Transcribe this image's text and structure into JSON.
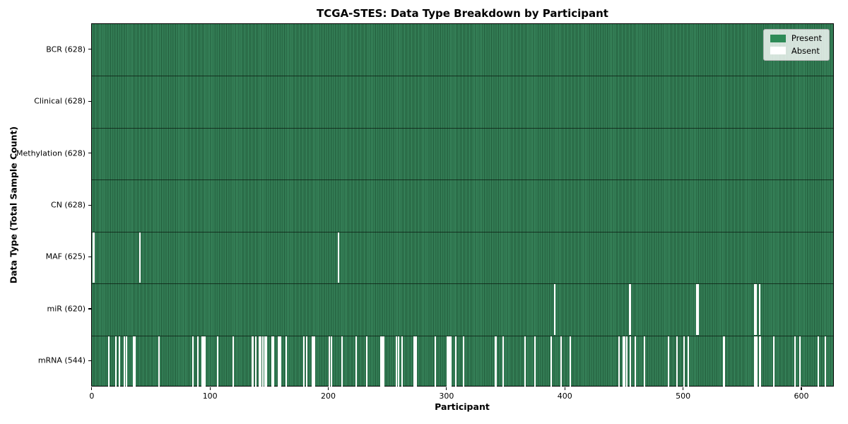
{
  "title": "TCGA-STES: Data Type Breakdown by Participant",
  "xlabel": "Participant",
  "ylabel": "Data Type (Total Sample Count)",
  "legend": {
    "present_label": "Present",
    "absent_label": "Absent"
  },
  "colors": {
    "present": "#2e8b57",
    "present_stripe_light": "#38865c",
    "present_stripe_dark": "#1f5838",
    "absent": "#ffffff",
    "legend_bg": "rgba(255,255,255,0.8)"
  },
  "chart_data": {
    "type": "heatmap",
    "title": "TCGA-STES: Data Type Breakdown by Participant",
    "xlabel": "Participant",
    "ylabel": "Data Type (Total Sample Count)",
    "legend": [
      "Present",
      "Absent"
    ],
    "legend_position": "upper right",
    "grid": false,
    "n_participants": 628,
    "xlim": [
      0,
      628
    ],
    "x_ticks": [
      0,
      100,
      200,
      300,
      400,
      500,
      600
    ],
    "rows": [
      {
        "data_type": "BCR",
        "label": "BCR (628)",
        "present_count": 628,
        "absent_indices": []
      },
      {
        "data_type": "Clinical",
        "label": "Clinical (628)",
        "present_count": 628,
        "absent_indices": []
      },
      {
        "data_type": "Methylation",
        "label": "Methylation (628)",
        "present_count": 628,
        "absent_indices": []
      },
      {
        "data_type": "CN",
        "label": "CN (628)",
        "present_count": 628,
        "absent_indices": []
      },
      {
        "data_type": "MAF",
        "label": "MAF (625)",
        "present_count": 625,
        "absent_indices": [
          1,
          40,
          208
        ]
      },
      {
        "data_type": "miR",
        "label": "miR (620)",
        "present_count": 620,
        "absent_indices": [
          391,
          454,
          455,
          511,
          512,
          560,
          561,
          564
        ]
      },
      {
        "data_type": "mRNA",
        "label": "mRNA (544)",
        "present_count": 544,
        "absent_indices": [
          14,
          20,
          23,
          27,
          29,
          35,
          36,
          56,
          85,
          89,
          93,
          94,
          95,
          106,
          119,
          135,
          136,
          138,
          141,
          142,
          144,
          146,
          147,
          152,
          153,
          157,
          158,
          159,
          164,
          179,
          181,
          186,
          187,
          188,
          200,
          202,
          211,
          223,
          232,
          244,
          245,
          246,
          257,
          259,
          262,
          272,
          273,
          274,
          290,
          300,
          301,
          302,
          303,
          307,
          314,
          341,
          347,
          366,
          374,
          388,
          396,
          404,
          445,
          449,
          450,
          452,
          455,
          459,
          467,
          487,
          494,
          500,
          504,
          534,
          560,
          561,
          562,
          564,
          565,
          576,
          594,
          598,
          614,
          620
        ]
      }
    ]
  }
}
